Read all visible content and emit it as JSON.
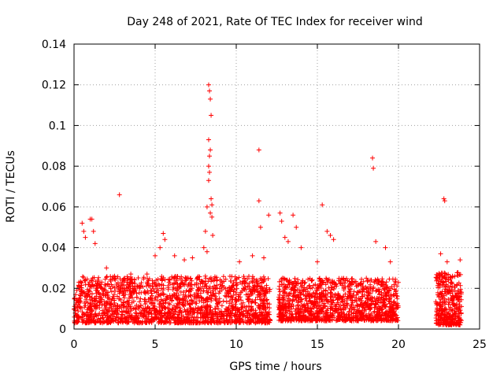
{
  "chart_data": {
    "type": "scatter",
    "title": "Day 248 of 2021, Rate Of TEC Index for receiver wind",
    "xlabel": "GPS time / hours",
    "ylabel": "ROTI / TECUs",
    "xlim": [
      0,
      25
    ],
    "ylim": [
      0,
      0.14
    ],
    "xticks": [
      0,
      5,
      10,
      15,
      20,
      25
    ],
    "yticks": [
      0,
      0.02,
      0.04,
      0.06,
      0.08,
      0.1,
      0.12,
      0.14
    ],
    "ytick_labels": [
      "0",
      "0.02",
      "0.04",
      "0.06",
      "0.08",
      "0.1",
      "0.12",
      "0.14"
    ],
    "grid": true,
    "marker": "+",
    "series": [
      {
        "color": "#ff0000",
        "points": [
          [
            0.5,
            0.052
          ],
          [
            0.6,
            0.048
          ],
          [
            0.7,
            0.045
          ],
          [
            1.0,
            0.054
          ],
          [
            1.1,
            0.054
          ],
          [
            1.2,
            0.048
          ],
          [
            1.3,
            0.042
          ],
          [
            2.0,
            0.03
          ],
          [
            2.5,
            0.026
          ],
          [
            2.8,
            0.066
          ],
          [
            3.5,
            0.027
          ],
          [
            4.5,
            0.027
          ],
          [
            5.0,
            0.036
          ],
          [
            5.3,
            0.04
          ],
          [
            5.5,
            0.047
          ],
          [
            5.6,
            0.044
          ],
          [
            6.2,
            0.036
          ],
          [
            6.8,
            0.034
          ],
          [
            7.3,
            0.035
          ],
          [
            8.0,
            0.04
          ],
          [
            8.1,
            0.048
          ],
          [
            8.2,
            0.06
          ],
          [
            8.3,
            0.12
          ],
          [
            8.35,
            0.117
          ],
          [
            8.4,
            0.113
          ],
          [
            8.45,
            0.105
          ],
          [
            8.3,
            0.093
          ],
          [
            8.4,
            0.088
          ],
          [
            8.35,
            0.085
          ],
          [
            8.3,
            0.08
          ],
          [
            8.35,
            0.077
          ],
          [
            8.3,
            0.073
          ],
          [
            8.45,
            0.064
          ],
          [
            8.5,
            0.061
          ],
          [
            8.4,
            0.057
          ],
          [
            8.5,
            0.055
          ],
          [
            8.55,
            0.046
          ],
          [
            8.2,
            0.038
          ],
          [
            10.2,
            0.033
          ],
          [
            11.0,
            0.036
          ],
          [
            11.4,
            0.088
          ],
          [
            11.4,
            0.063
          ],
          [
            11.5,
            0.05
          ],
          [
            11.7,
            0.035
          ],
          [
            12.0,
            0.056
          ],
          [
            12.7,
            0.057
          ],
          [
            12.8,
            0.053
          ],
          [
            13.0,
            0.045
          ],
          [
            13.2,
            0.043
          ],
          [
            13.5,
            0.056
          ],
          [
            13.7,
            0.05
          ],
          [
            14.0,
            0.04
          ],
          [
            15.0,
            0.033
          ],
          [
            15.3,
            0.061
          ],
          [
            15.6,
            0.048
          ],
          [
            15.8,
            0.046
          ],
          [
            16.0,
            0.044
          ],
          [
            18.4,
            0.084
          ],
          [
            18.45,
            0.079
          ],
          [
            18.6,
            0.043
          ],
          [
            19.2,
            0.04
          ],
          [
            19.5,
            0.033
          ],
          [
            22.6,
            0.037
          ],
          [
            22.8,
            0.064
          ],
          [
            22.85,
            0.063
          ],
          [
            23.0,
            0.033
          ],
          [
            23.8,
            0.034
          ]
        ],
        "bands": [
          {
            "x_start": 0,
            "x_end": 12.1,
            "y_low": 0.003,
            "y_high": 0.026,
            "density": 1800
          },
          {
            "x_start": 12.6,
            "x_end": 20.0,
            "y_low": 0.004,
            "y_high": 0.025,
            "density": 1200
          },
          {
            "x_start": 22.3,
            "x_end": 23.9,
            "y_low": 0.002,
            "y_high": 0.028,
            "density": 350
          }
        ]
      }
    ]
  }
}
